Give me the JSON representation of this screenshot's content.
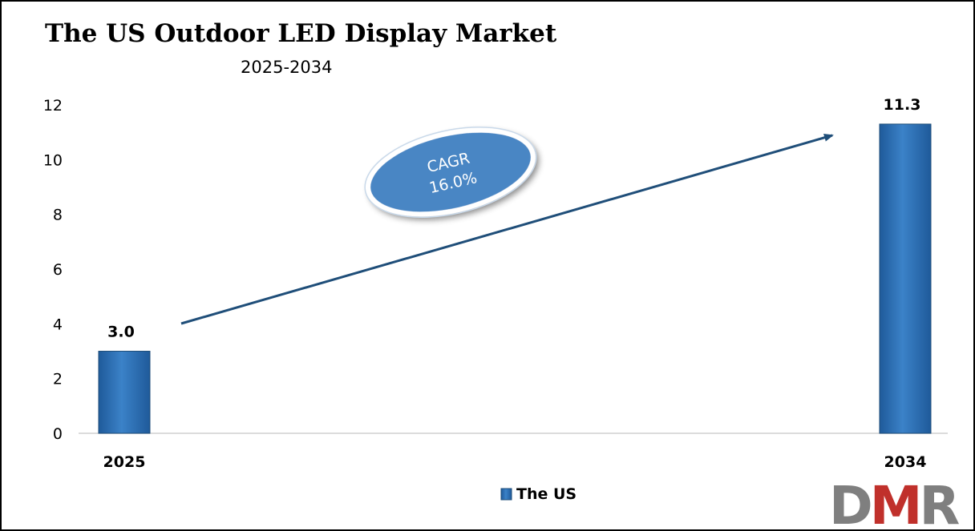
{
  "chart_data": {
    "type": "bar",
    "title": "The US Outdoor LED Display Market",
    "subtitle": "2025-2034",
    "categories": [
      "2025",
      "2034"
    ],
    "series": [
      {
        "name": "The US",
        "values": [
          3.0,
          11.3
        ],
        "labels": [
          "3.0",
          "11.3"
        ],
        "color": "#2f73bd"
      }
    ],
    "y_ticks": [
      "0",
      "2",
      "4",
      "6",
      "8",
      "10",
      "12"
    ],
    "ylim": [
      0,
      12
    ],
    "grid": false,
    "legend_position": "bottom-center",
    "annotation": {
      "line1": "CAGR",
      "line2": "16.0%",
      "color": "#4a86c4"
    },
    "arrow_color": "#1f4e79"
  },
  "logo": {
    "text": "DMR",
    "letters": [
      "D",
      "M",
      "R"
    ],
    "colors": [
      "#7f7f7f",
      "#c0302b",
      "#7f7f7f"
    ]
  }
}
